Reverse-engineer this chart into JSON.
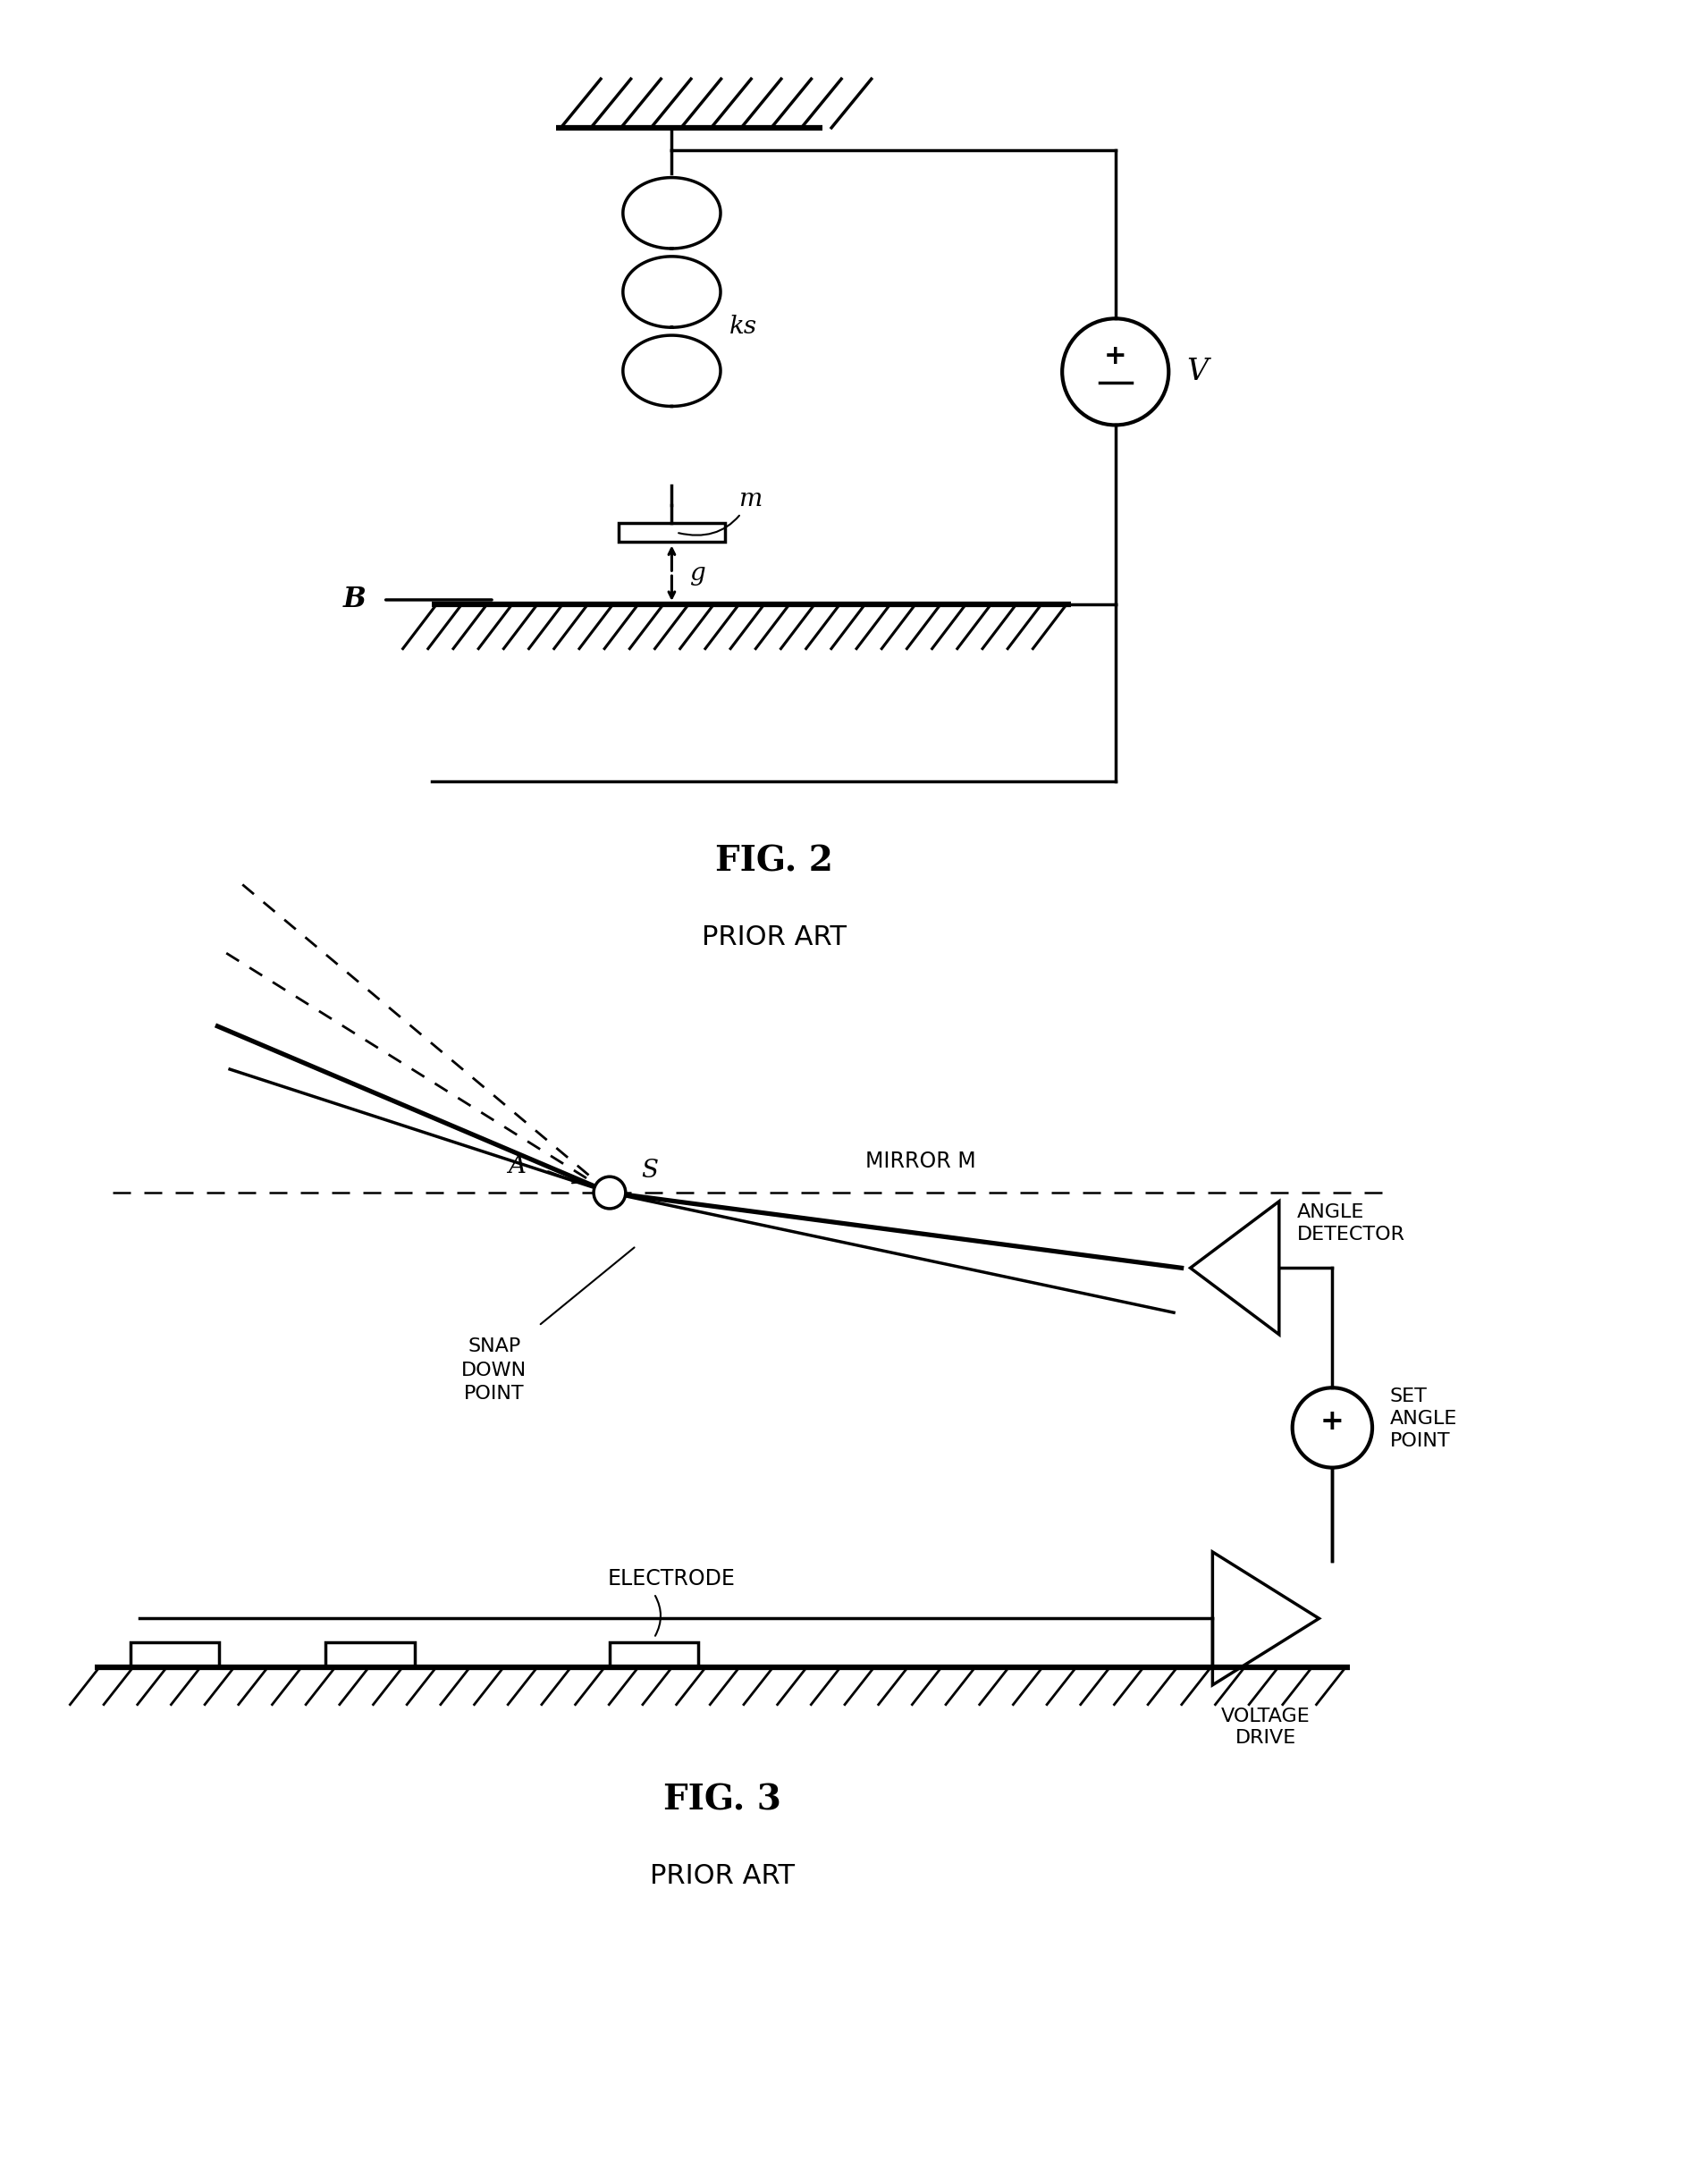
{
  "fig2_title": "FIG. 2",
  "fig2_subtitle": "PRIOR ART",
  "fig3_title": "FIG. 3",
  "fig3_subtitle": "PRIOR ART",
  "background_color": "#ffffff",
  "line_color": "#000000",
  "line_width": 2.5,
  "font_size_label": 20,
  "font_size_title": 28,
  "font_size_subtitle": 22,
  "font_size_small": 16
}
